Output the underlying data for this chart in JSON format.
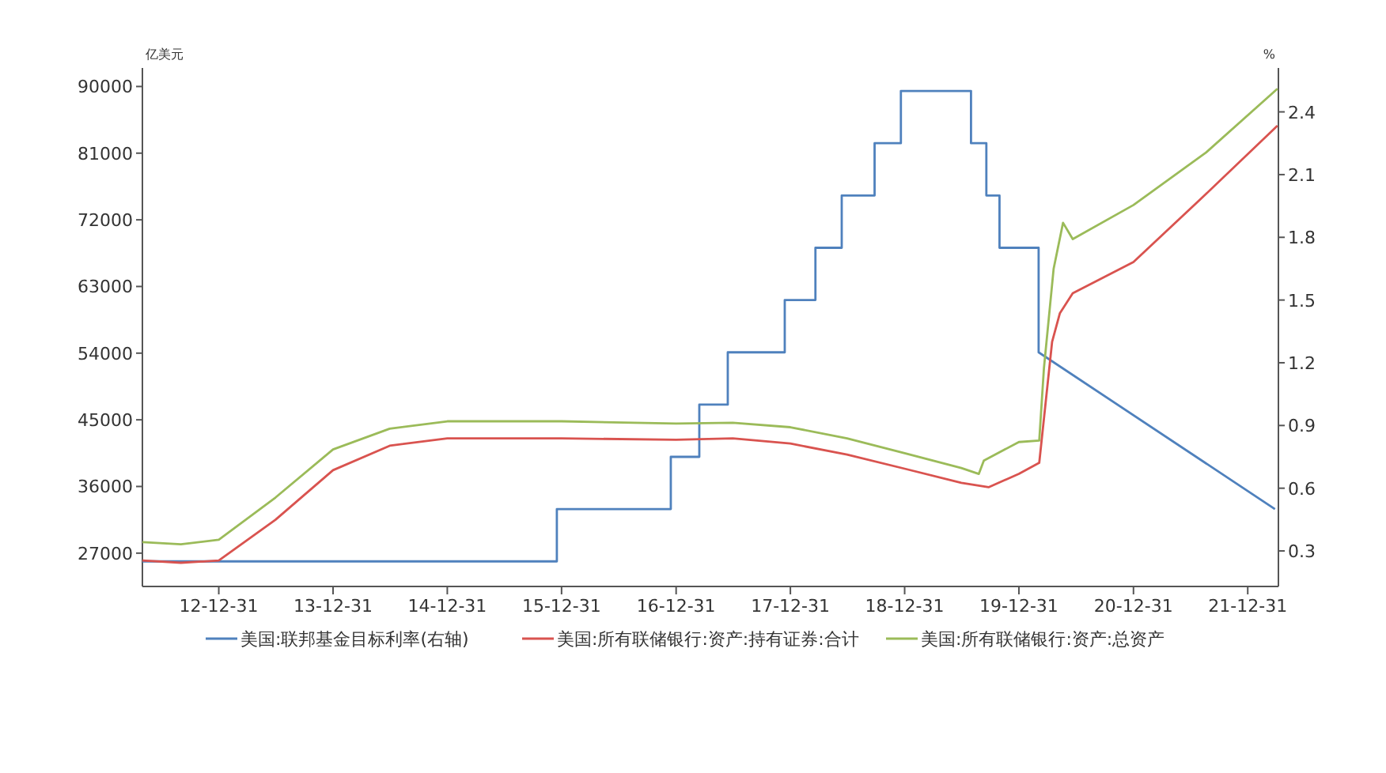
{
  "chart_data": {
    "type": "line",
    "ylabel": "亿美元",
    "y2label": "%",
    "xlim": [
      "2012-05-01",
      "2022-04-08"
    ],
    "xticks": [
      {
        "value": "2012-12-31",
        "label": "12-12-31"
      },
      {
        "value": "2013-12-31",
        "label": "13-12-31"
      },
      {
        "value": "2014-12-31",
        "label": "14-12-31"
      },
      {
        "value": "2015-12-31",
        "label": "15-12-31"
      },
      {
        "value": "2016-12-31",
        "label": "16-12-31"
      },
      {
        "value": "2017-12-31",
        "label": "17-12-31"
      },
      {
        "value": "2018-12-31",
        "label": "18-12-31"
      },
      {
        "value": "2019-12-31",
        "label": "19-12-31"
      },
      {
        "value": "2020-12-31",
        "label": "20-12-31"
      },
      {
        "value": "2021-12-31",
        "label": "21-12-31"
      }
    ],
    "ylim": [
      22500,
      92500
    ],
    "yticks": [
      27000,
      36000,
      45000,
      54000,
      63000,
      72000,
      81000,
      90000
    ],
    "y2lim": [
      0.13,
      2.61
    ],
    "y2ticks": [
      0.3,
      0.6,
      0.9,
      1.2,
      1.5,
      1.8,
      2.1,
      2.4
    ],
    "grid": false,
    "legend": "bottom",
    "marker": "none",
    "line_style": "solid",
    "series": [
      {
        "name": "美国:联邦基金目标利率(右轴)",
        "color": "#4f81bd",
        "axis": "y2",
        "x": [
          "2012-05-01",
          "2015-12-16",
          "2015-12-16",
          "2016-12-14",
          "2016-12-14",
          "2017-03-15",
          "2017-03-15",
          "2017-06-14",
          "2017-06-14",
          "2017-12-13",
          "2017-12-13",
          "2018-03-21",
          "2018-03-21",
          "2018-06-13",
          "2018-06-13",
          "2018-09-26",
          "2018-09-26",
          "2018-12-19",
          "2018-12-19",
          "2019-07-31",
          "2019-07-31",
          "2019-09-18",
          "2019-09-18",
          "2019-10-30",
          "2019-10-30",
          "2020-03-03",
          "2020-03-03",
          "2022-03-28"
        ],
        "values": [
          0.25,
          0.25,
          0.5,
          0.5,
          0.75,
          0.75,
          1.0,
          1.0,
          1.25,
          1.25,
          1.5,
          1.5,
          1.75,
          1.75,
          2.0,
          2.0,
          2.25,
          2.25,
          2.5,
          2.5,
          2.25,
          2.25,
          2.0,
          2.0,
          1.75,
          1.75,
          1.25,
          0.5
        ]
      },
      {
        "name": "美国:所有联储银行:资产:持有证券:合计",
        "color": "#d9534f",
        "x": [
          "2012-05-01",
          "2012-09-01",
          "2012-12-31",
          "2013-06-30",
          "2013-12-31",
          "2014-06-30",
          "2014-12-31",
          "2015-12-31",
          "2016-12-31",
          "2017-06-30",
          "2017-12-31",
          "2018-06-30",
          "2018-12-31",
          "2019-06-30",
          "2019-09-25",
          "2019-12-31",
          "2020-03-05",
          "2020-04-15",
          "2020-05-10",
          "2020-06-20",
          "2020-12-31",
          "2021-08-20",
          "2022-04-05"
        ],
        "values": [
          26000,
          25700,
          26000,
          31500,
          38200,
          41500,
          42500,
          42500,
          42300,
          42500,
          41800,
          40300,
          38400,
          36500,
          35900,
          37700,
          39200,
          55500,
          59400,
          62100,
          66300,
          75500,
          84700
        ]
      },
      {
        "name": "美国:所有联储银行:资产:总资产",
        "color": "#9bbb59",
        "x": [
          "2012-05-01",
          "2012-09-01",
          "2012-12-31",
          "2013-06-30",
          "2013-12-31",
          "2014-06-30",
          "2014-12-31",
          "2015-12-31",
          "2016-12-31",
          "2017-06-30",
          "2017-12-31",
          "2018-06-30",
          "2018-12-31",
          "2019-06-30",
          "2019-08-25",
          "2019-09-10",
          "2019-12-31",
          "2020-03-05",
          "2020-03-20",
          "2020-04-20",
          "2020-05-20",
          "2020-06-20",
          "2020-12-31",
          "2021-08-20",
          "2022-04-05"
        ],
        "values": [
          28500,
          28200,
          28800,
          34500,
          41000,
          43800,
          44800,
          44800,
          44500,
          44600,
          44000,
          42500,
          40500,
          38500,
          37700,
          39500,
          42000,
          42200,
          52000,
          65400,
          71600,
          69400,
          74000,
          81100,
          89700
        ]
      }
    ]
  }
}
